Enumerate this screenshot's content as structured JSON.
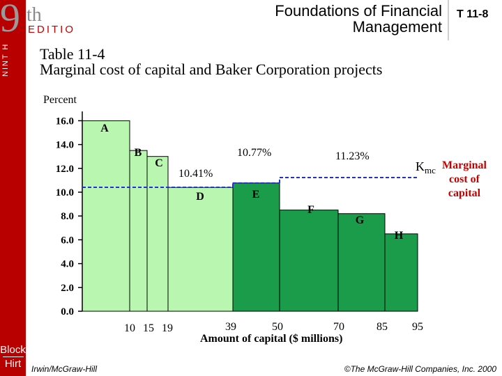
{
  "header": {
    "edition_number": "9",
    "edition_suffix": "th",
    "edition_word": "EDITIO",
    "edition_vertical": "NINT H",
    "course_title_line1": "Foundations of Financial",
    "course_title_line2": "Management",
    "slide_number": "T 11-8"
  },
  "table_title_line1": "Table 11-4",
  "table_title_line2": "Marginal cost of capital and Baker Corporation projects",
  "footer": {
    "publisher": "Irwin/McGraw-Hill",
    "copyright": "©The McGraw-Hill Companies, Inc. 2000",
    "author_line1": "Block",
    "author_line2": "Hirt"
  },
  "colors": {
    "sidebar": "#b90000",
    "project_bar_light": "#b9f7b0",
    "project_bar_dark": "#1a9c4a",
    "mcc_line": "#2233cc"
  },
  "chart_data": {
    "type": "bar",
    "ylabel": "Percent",
    "xlabel": "Amount of capital ($ millions)",
    "ylim": [
      0,
      16
    ],
    "y_ticks": [
      "16.0",
      "14.0",
      "12.0",
      "10.0",
      "8.0",
      "6.0",
      "4.0",
      "2.0",
      "0.0"
    ],
    "x_tick_labels": [
      "10",
      "15",
      "19",
      "39",
      "50",
      "70",
      "85",
      "95"
    ],
    "projects": [
      {
        "name": "A",
        "start": 0,
        "end": 10,
        "value": 16.0,
        "shade": "light"
      },
      {
        "name": "B",
        "start": 10,
        "end": 15,
        "value": 13.5,
        "shade": "light"
      },
      {
        "name": "C",
        "start": 15,
        "end": 19,
        "value": 13.0,
        "shade": "light"
      },
      {
        "name": "D",
        "start": 19,
        "end": 39,
        "value": 10.4,
        "shade": "light"
      },
      {
        "name": "E",
        "start": 39,
        "end": 50,
        "value": 10.77,
        "shade": "dark"
      },
      {
        "name": "F",
        "start": 50,
        "end": 70,
        "value": 8.5,
        "shade": "dark"
      },
      {
        "name": "G",
        "start": 70,
        "end": 85,
        "value": 8.2,
        "shade": "dark"
      },
      {
        "name": "H",
        "start": 85,
        "end": 95,
        "value": 6.5,
        "shade": "dark"
      }
    ],
    "mcc_segments": [
      {
        "label": "10.41%",
        "x_from": 0,
        "x_to": 39,
        "value": 10.41
      },
      {
        "label": "10.77%",
        "x_from": 39,
        "x_to": 50,
        "value": 10.77
      },
      {
        "label": "11.23%",
        "x_from": 50,
        "x_to": 95,
        "value": 11.23
      }
    ],
    "mcc_name": "Kmc",
    "mcc_description_lines": [
      "Marginal",
      "cost of",
      "capital"
    ]
  }
}
